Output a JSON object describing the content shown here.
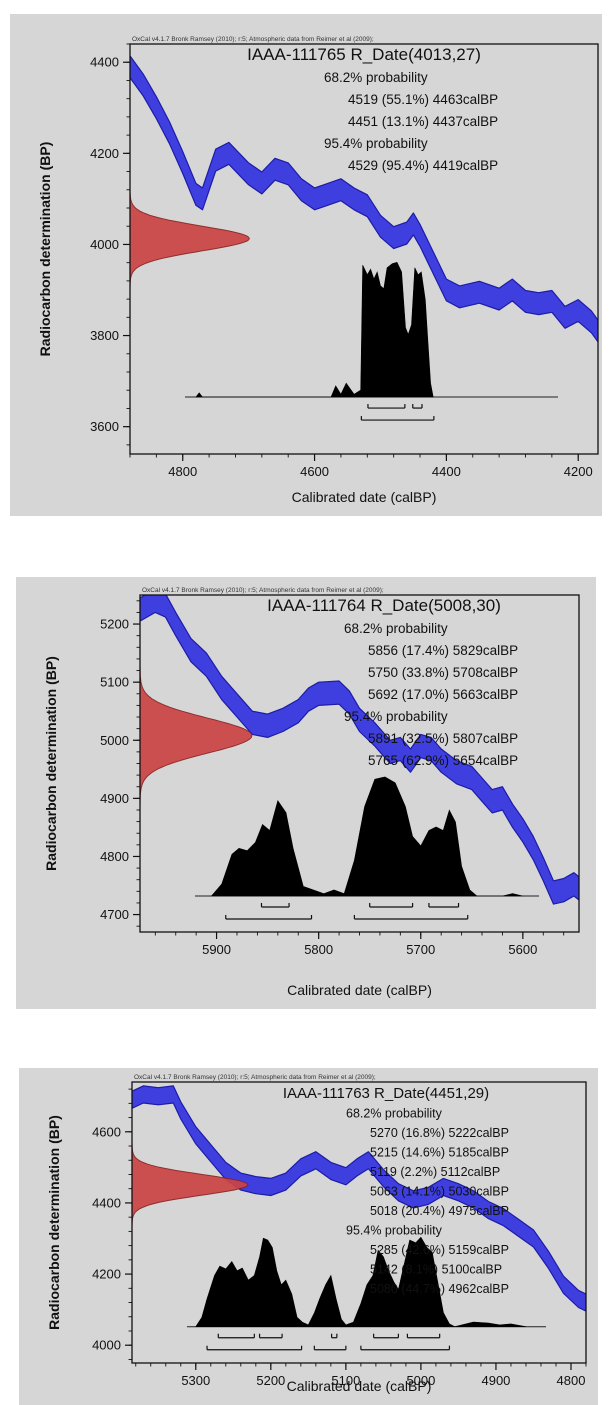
{
  "axes_text": {
    "xlabel": "Calibrated date (calBP)",
    "ylabel": "Radiocarbon determination (BP)",
    "credit": "OxCal v4.1.7 Bronk Ramsey (2010); r:5; Atmospheric data from Reimer et al (2009);"
  },
  "colors": {
    "panel_bg": "#d6d6d6",
    "curve": "#3f3fe0",
    "curve_edge": "#1c1ca8",
    "radiocarbon": "#cc4444",
    "calibrated": "#000000"
  },
  "chart_data": [
    {
      "type": "area",
      "title": "IAAA-111765 R_Date(4013,27)",
      "xlabel": "Calibrated date (calBP)",
      "ylabel": "Radiocarbon determination (BP)",
      "xlim": [
        4880,
        4170
      ],
      "ylim": [
        3540,
        4440
      ],
      "xticks": [
        4800,
        4600,
        4400,
        4200
      ],
      "yticks": [
        3600,
        3800,
        4000,
        4200,
        4400
      ],
      "annotations": [
        "68.2% probability",
        "4519 (55.1%) 4463calBP",
        "4451 (13.1%) 4437calBP",
        "95.4% probability",
        "4529 (95.4%) 4419calBP"
      ],
      "calibration_curve": {
        "band_width": 24,
        "x": [
          4880,
          4860,
          4840,
          4820,
          4800,
          4780,
          4770,
          4750,
          4730,
          4700,
          4680,
          4660,
          4640,
          4620,
          4600,
          4580,
          4560,
          4540,
          4520,
          4500,
          4480,
          4460,
          4450,
          4440,
          4420,
          4400,
          4380,
          4350,
          4320,
          4300,
          4280,
          4260,
          4240,
          4220,
          4200,
          4180,
          4170
        ],
        "y": [
          4390,
          4350,
          4300,
          4245,
          4180,
          4110,
          4100,
          4185,
          4200,
          4155,
          4135,
          4165,
          4155,
          4120,
          4100,
          4110,
          4120,
          4100,
          4085,
          4040,
          4015,
          4025,
          4045,
          4020,
          3960,
          3900,
          3885,
          3895,
          3880,
          3900,
          3875,
          3870,
          3875,
          3840,
          3855,
          3830,
          3810
        ]
      },
      "radiocarbon_date": {
        "mean": 4013,
        "sd": 27
      },
      "calibrated_distribution": {
        "baseline_bp": 3665,
        "peak_height_bp": 305,
        "x": [
          4780,
          4775,
          4770,
          4575,
          4568,
          4560,
          4552,
          4540,
          4530,
          4527,
          4520,
          4515,
          4510,
          4505,
          4500,
          4495,
          4490,
          4482,
          4475,
          4468,
          4462,
          4458,
          4453,
          4448,
          4443,
          4438,
          4432,
          4428,
          4424,
          4420
        ],
        "y": [
          0,
          0.03,
          0,
          0,
          0.08,
          0.02,
          0.1,
          0.02,
          0.05,
          0.95,
          0.88,
          0.92,
          0.85,
          0.9,
          0.8,
          0.78,
          0.93,
          0.96,
          0.97,
          0.9,
          0.5,
          0.45,
          0.52,
          0.93,
          0.88,
          0.9,
          0.7,
          0.4,
          0.1,
          0
        ]
      },
      "range_bars": [
        {
          "level": 1,
          "from": 4519,
          "to": 4463
        },
        {
          "level": 1,
          "from": 4451,
          "to": 4437
        },
        {
          "level": 2,
          "from": 4529,
          "to": 4419
        }
      ]
    },
    {
      "type": "area",
      "title": "IAAA-111764 R_Date(5008,30)",
      "xlabel": "Calibrated date (calBP)",
      "ylabel": "Radiocarbon determination (BP)",
      "xlim": [
        5975,
        5545
      ],
      "ylim": [
        4670,
        5250
      ],
      "xticks": [
        5900,
        5800,
        5700,
        5600
      ],
      "yticks": [
        4700,
        4800,
        4900,
        5000,
        5100,
        5200
      ],
      "annotations": [
        "68.2% probability",
        "5856 (17.4%) 5829calBP",
        "5750 (33.8%) 5708calBP",
        "5692 (17.0%) 5663calBP",
        "95.4% probability",
        "5891 (32.5%) 5807calBP",
        "5765 (62.9%) 5654calBP"
      ],
      "calibration_curve": {
        "band_width": 20,
        "x": [
          5975,
          5960,
          5950,
          5940,
          5925,
          5910,
          5895,
          5880,
          5865,
          5850,
          5835,
          5820,
          5810,
          5800,
          5780,
          5770,
          5760,
          5745,
          5730,
          5720,
          5710,
          5700,
          5690,
          5680,
          5665,
          5650,
          5640,
          5630,
          5620,
          5610,
          5600,
          5590,
          5580,
          5570,
          5560,
          5550,
          5545
        ],
        "y": [
          5225,
          5240,
          5232,
          5200,
          5155,
          5130,
          5090,
          5060,
          5030,
          5025,
          5035,
          5050,
          5070,
          5080,
          5082,
          5065,
          5035,
          5010,
          4980,
          4985,
          4965,
          4990,
          4985,
          4965,
          4945,
          4935,
          4915,
          4895,
          4900,
          4870,
          4845,
          4815,
          4778,
          4738,
          4742,
          4752,
          4745
        ]
      },
      "radiocarbon_date": {
        "mean": 5008,
        "sd": 30
      },
      "calibrated_distribution": {
        "baseline_bp": 4732,
        "peak_height_bp": 205,
        "x": [
          5905,
          5895,
          5885,
          5878,
          5870,
          5862,
          5855,
          5848,
          5840,
          5832,
          5825,
          5815,
          5805,
          5795,
          5785,
          5775,
          5765,
          5755,
          5745,
          5735,
          5725,
          5715,
          5708,
          5700,
          5692,
          5685,
          5678,
          5672,
          5666,
          5660,
          5652,
          5645,
          5620,
          5610,
          5600
        ],
        "y": [
          0,
          0.1,
          0.35,
          0.4,
          0.38,
          0.45,
          0.6,
          0.55,
          0.8,
          0.7,
          0.4,
          0.08,
          0.05,
          0.02,
          0.05,
          0.02,
          0.3,
          0.75,
          0.98,
          1.0,
          0.95,
          0.75,
          0.5,
          0.42,
          0.55,
          0.58,
          0.55,
          0.72,
          0.62,
          0.25,
          0.05,
          0,
          0,
          0.02,
          0
        ]
      },
      "range_bars": [
        {
          "level": 1,
          "from": 5856,
          "to": 5829
        },
        {
          "level": 1,
          "from": 5750,
          "to": 5708
        },
        {
          "level": 1,
          "from": 5692,
          "to": 5663
        },
        {
          "level": 2,
          "from": 5891,
          "to": 5807
        },
        {
          "level": 2,
          "from": 5765,
          "to": 5654
        }
      ]
    },
    {
      "type": "area",
      "title": "IAAA-111763 R_Date(4451,29)",
      "xlabel": "Calibrated date (calBP)",
      "ylabel": "Radiocarbon determination (BP)",
      "xlim": [
        5385,
        4780
      ],
      "ylim": [
        3950,
        4740
      ],
      "xticks": [
        5300,
        5200,
        5100,
        5000,
        4900,
        4800
      ],
      "yticks": [
        4000,
        4200,
        4400,
        4600
      ],
      "annotations": [
        "68.2% probability",
        "5270 (16.8%) 5222calBP",
        "5215 (14.6%) 5185calBP",
        "5119 (2.2%) 5112calBP",
        "5063 (14.1%) 5030calBP",
        "5018 (20.4%) 4975calBP",
        "95.4% probability",
        "5285 (42.6%) 5159calBP",
        "5142 (8.1%) 5100calBP",
        "5080 (44.7%) 4962calBP"
      ],
      "calibration_curve": {
        "band_width": 24,
        "x": [
          5385,
          5370,
          5350,
          5330,
          5320,
          5300,
          5280,
          5260,
          5240,
          5220,
          5200,
          5180,
          5160,
          5140,
          5120,
          5100,
          5085,
          5070,
          5050,
          5030,
          5010,
          4990,
          4970,
          4950,
          4930,
          4910,
          4890,
          4870,
          4850,
          4830,
          4810,
          4790,
          4780
        ],
        "y": [
          4690,
          4705,
          4700,
          4705,
          4660,
          4590,
          4540,
          4490,
          4460,
          4450,
          4445,
          4460,
          4500,
          4520,
          4490,
          4475,
          4500,
          4520,
          4470,
          4430,
          4410,
          4420,
          4445,
          4430,
          4410,
          4380,
          4360,
          4330,
          4300,
          4240,
          4170,
          4130,
          4120
        ]
      },
      "radiocarbon_date": {
        "mean": 4451,
        "sd": 29
      },
      "calibrated_distribution": {
        "baseline_bp": 4052,
        "peak_height_bp": 262,
        "x": [
          5300,
          5292,
          5285,
          5275,
          5268,
          5260,
          5252,
          5245,
          5238,
          5230,
          5222,
          5215,
          5210,
          5204,
          5198,
          5192,
          5186,
          5180,
          5172,
          5165,
          5158,
          5150,
          5142,
          5135,
          5127,
          5120,
          5113,
          5106,
          5100,
          5090,
          5080,
          5072,
          5064,
          5057,
          5050,
          5043,
          5036,
          5030,
          5022,
          5015,
          5007,
          5000,
          4992,
          4985,
          4978,
          4970,
          4962,
          4955,
          4930,
          4910,
          4895,
          4880,
          4860
        ],
        "y": [
          0,
          0.1,
          0.3,
          0.55,
          0.65,
          0.62,
          0.7,
          0.6,
          0.63,
          0.5,
          0.55,
          0.75,
          0.95,
          0.93,
          0.85,
          0.6,
          0.45,
          0.5,
          0.35,
          0.1,
          0.05,
          0.02,
          0.15,
          0.3,
          0.45,
          0.55,
          0.3,
          0.08,
          0.02,
          0.05,
          0.25,
          0.45,
          0.55,
          0.82,
          0.75,
          0.6,
          0.48,
          0.4,
          0.68,
          0.93,
          0.9,
          0.96,
          0.85,
          0.8,
          0.5,
          0.15,
          0.03,
          0,
          0.05,
          0.04,
          0.02,
          0.03,
          0
        ]
      },
      "range_bars": [
        {
          "level": 1,
          "from": 5270,
          "to": 5222
        },
        {
          "level": 1,
          "from": 5215,
          "to": 5185
        },
        {
          "level": 1,
          "from": 5119,
          "to": 5112
        },
        {
          "level": 1,
          "from": 5063,
          "to": 5030
        },
        {
          "level": 1,
          "from": 5018,
          "to": 4975
        },
        {
          "level": 2,
          "from": 5285,
          "to": 5159
        },
        {
          "level": 2,
          "from": 5142,
          "to": 5100
        },
        {
          "level": 2,
          "from": 5080,
          "to": 4962
        }
      ]
    }
  ]
}
